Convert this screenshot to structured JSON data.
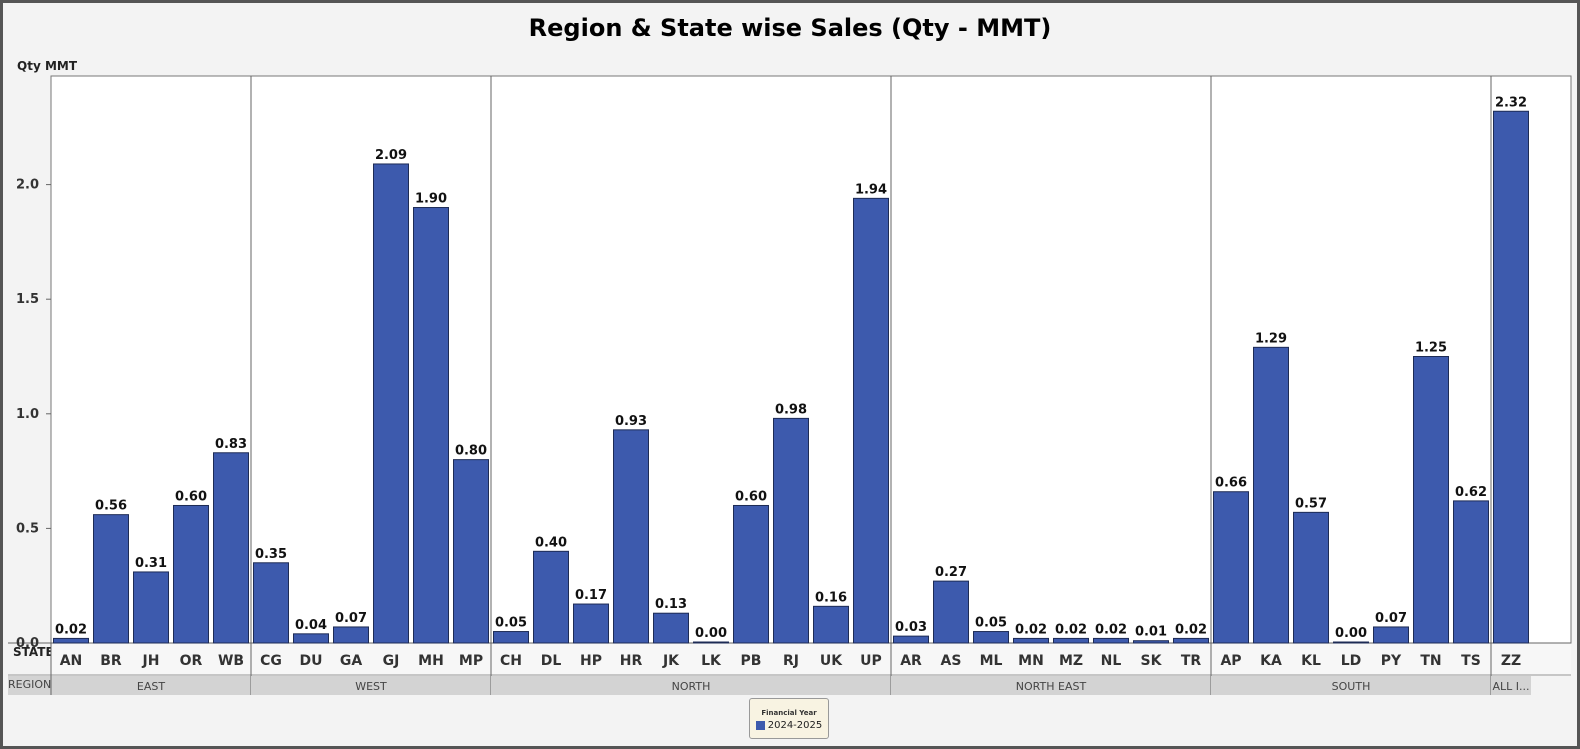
{
  "chart_data": {
    "type": "bar",
    "title": "Region & State wise Sales (Qty - MMT)",
    "ylabel": "Qty MMT",
    "xlabel_state": "STATE",
    "xlabel_region": "REGION",
    "ylim": [
      0,
      2.45
    ],
    "yticks": [
      0.0,
      0.5,
      1.0,
      1.5,
      2.0
    ],
    "ytick_labels": [
      "0.0",
      "0.5",
      "1.0",
      "1.5",
      "2.0"
    ],
    "bar_color": "#3d5aad",
    "legend": {
      "title": "Financial Year",
      "entries": [
        "2024-2025"
      ]
    },
    "series": [
      {
        "name": "2024-2025"
      }
    ],
    "regions": [
      {
        "name": "EAST",
        "states": [
          "AN",
          "BR",
          "JH",
          "OR",
          "WB"
        ],
        "values": [
          0.02,
          0.56,
          0.31,
          0.6,
          0.83
        ],
        "labels": [
          "0.02",
          "0.56",
          "0.31",
          "0.60",
          "0.83"
        ]
      },
      {
        "name": "WEST",
        "states": [
          "CG",
          "DU",
          "GA",
          "GJ",
          "MH",
          "MP"
        ],
        "values": [
          0.35,
          0.04,
          0.07,
          2.09,
          1.9,
          0.8
        ],
        "labels": [
          "0.35",
          "0.04",
          "0.07",
          "2.09",
          "1.90",
          "0.80"
        ]
      },
      {
        "name": "NORTH",
        "states": [
          "CH",
          "DL",
          "HP",
          "HR",
          "JK",
          "LK",
          "PB",
          "RJ",
          "UK",
          "UP"
        ],
        "values": [
          0.05,
          0.4,
          0.17,
          0.93,
          0.13,
          0.0,
          0.6,
          0.98,
          0.16,
          1.94
        ],
        "labels": [
          "0.05",
          "0.40",
          "0.17",
          "0.93",
          "0.13",
          "0.00",
          "0.60",
          "0.98",
          "0.16",
          "1.94"
        ]
      },
      {
        "name": "NORTH EAST",
        "states": [
          "AR",
          "AS",
          "ML",
          "MN",
          "MZ",
          "NL",
          "SK",
          "TR"
        ],
        "values": [
          0.03,
          0.27,
          0.05,
          0.02,
          0.02,
          0.02,
          0.01,
          0.02
        ],
        "labels": [
          "0.03",
          "0.27",
          "0.05",
          "0.02",
          "0.02",
          "0.02",
          "0.01",
          "0.02"
        ]
      },
      {
        "name": "SOUTH",
        "states": [
          "AP",
          "KA",
          "KL",
          "LD",
          "PY",
          "TN",
          "TS"
        ],
        "values": [
          0.66,
          1.29,
          0.57,
          0.0,
          0.07,
          1.25,
          0.62
        ],
        "labels": [
          "0.66",
          "1.29",
          "0.57",
          "0.00",
          "0.07",
          "1.25",
          "0.62"
        ]
      },
      {
        "name": "ALL I...",
        "states": [
          "ZZ"
        ],
        "values": [
          2.32
        ],
        "labels": [
          "2.32"
        ]
      }
    ]
  }
}
